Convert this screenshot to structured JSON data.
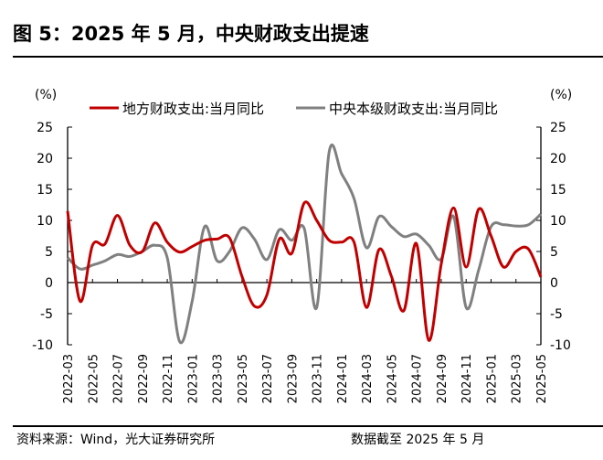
{
  "title": "图 5：2025 年 5 月，中央财政支出提速",
  "source": "资料来源：Wind，光大证券研究所",
  "note": "数据截至 2025 年 5 月",
  "chart_data": {
    "type": "line",
    "left_unit": "(%)",
    "right_unit": "(%)",
    "ylim": [
      -10,
      25
    ],
    "yticks": [
      -10,
      -5,
      0,
      5,
      10,
      15,
      20,
      25
    ],
    "grid": false,
    "legend_position": "top",
    "x": [
      "2022-03",
      "2022-04",
      "2022-05",
      "2022-06",
      "2022-07",
      "2022-08",
      "2022-09",
      "2022-10",
      "2022-11",
      "2022-12",
      "2023-01",
      "2023-02",
      "2023-03",
      "2023-04",
      "2023-05",
      "2023-06",
      "2023-07",
      "2023-08",
      "2023-09",
      "2023-10",
      "2023-11",
      "2023-12",
      "2024-01",
      "2024-02",
      "2024-03",
      "2024-04",
      "2024-05",
      "2024-06",
      "2024-07",
      "2024-08",
      "2024-09",
      "2024-10",
      "2024-11",
      "2024-12",
      "2025-01",
      "2025-02",
      "2025-03",
      "2025-04",
      "2025-05"
    ],
    "xtick_labels": [
      "2022-03",
      "2022-05",
      "2022-07",
      "2022-09",
      "2022-11",
      "2023-01",
      "2023-03",
      "2023-05",
      "2023-07",
      "2023-09",
      "2023-11",
      "2024-01",
      "2024-03",
      "2024-05",
      "2024-07",
      "2024-09",
      "2024-11",
      "2025-01",
      "2025-03",
      "2025-05"
    ],
    "series": [
      {
        "name": "地方财政支出:当月同比",
        "color": "#c00000",
        "values": [
          11.5,
          -3,
          6,
          6.2,
          10.8,
          6,
          5,
          9.6,
          6.5,
          4.9,
          5.8,
          6.8,
          7,
          7.2,
          1,
          -3.8,
          -2,
          7,
          4.7,
          12.8,
          10,
          6.8,
          6.5,
          6.5,
          -4,
          5.3,
          1,
          -4.5,
          6.3,
          -9.3,
          3,
          12,
          2.5,
          11.8,
          7.5,
          2.5,
          5,
          5.4,
          0.9
        ]
      },
      {
        "name": "中央本级财政支出:当月同比",
        "color": "#808080",
        "values": [
          4,
          2.2,
          2.8,
          3.5,
          4.5,
          4.2,
          5,
          6,
          4,
          -9.5,
          -3,
          9,
          3.5,
          5,
          8.8,
          7,
          3.7,
          8.5,
          6.8,
          8.7,
          -4,
          21,
          17.5,
          13.5,
          5.6,
          10.6,
          9,
          7.4,
          7.8,
          6,
          3.8,
          10.6,
          -4,
          2,
          9,
          9.3,
          9.1,
          9.3,
          11
        ]
      }
    ]
  }
}
